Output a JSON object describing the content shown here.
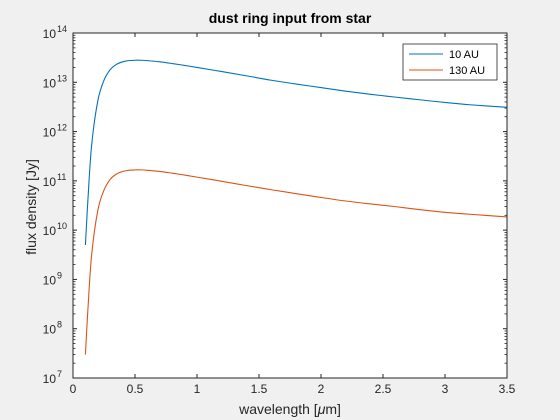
{
  "chart_data": {
    "type": "line",
    "title": "dust ring input from star",
    "xlabel_main": "wavelength [",
    "xlabel_mu": "μ",
    "xlabel_end": "m]",
    "ylabel": "flux density [Jy]",
    "xlim": [
      0,
      3.5
    ],
    "ylim": [
      10000000,
      100000000000000
    ],
    "yscale": "log",
    "grid": false,
    "legend_placement": "top-right",
    "x_ticks": [
      "0",
      "0.5",
      "1",
      "1.5",
      "2",
      "2.5",
      "3",
      "3.5"
    ],
    "y_tick_base": "10",
    "y_tick_exponents": [
      "7",
      "8",
      "9",
      "10",
      "11",
      "12",
      "13",
      "14"
    ],
    "x": [
      0.1,
      0.12,
      0.15,
      0.2,
      0.25,
      0.3,
      0.35,
      0.4,
      0.45,
      0.5,
      0.55,
      0.6,
      0.7,
      0.8,
      0.9,
      1.0,
      1.2,
      1.4,
      1.6,
      1.8,
      2.0,
      2.2,
      2.4,
      2.6,
      2.8,
      3.0,
      3.2,
      3.5
    ],
    "series": [
      {
        "name": "10 AU",
        "color": "#0072bd",
        "values": [
          5000000000.0,
          40000000000.0,
          520000000000.0,
          4200000000000.0,
          11000000000000.0,
          18000000000000.0,
          23000000000000.0,
          26000000000000.0,
          27500000000000.0,
          28000000000000.0,
          28000000000000.0,
          27500000000000.0,
          26000000000000.0,
          24000000000000.0,
          22000000000000.0,
          20000000000000.0,
          16500000000000.0,
          13500000000000.0,
          11000000000000.0,
          9200000000000.0,
          7800000000000.0,
          6600000000000.0,
          5700000000000.0,
          5000000000000.0,
          4400000000000.0,
          3900000000000.0,
          3500000000000.0,
          3100000000000.0
        ]
      },
      {
        "name": "130 AU",
        "color": "#d95319",
        "values": [
          30000000.0,
          240000000.0,
          3100000000.0,
          25000000000.0,
          65000000000.0,
          107000000000.0,
          137000000000.0,
          155000000000.0,
          164000000000.0,
          167000000000.0,
          167000000000.0,
          164000000000.0,
          155000000000.0,
          143000000000.0,
          131000000000.0,
          119000000000.0,
          98000000000.0,
          80000000000.0,
          66000000000.0,
          55000000000.0,
          46000000000.0,
          39000000000.0,
          34000000000.0,
          30000000000.0,
          26000000000.0,
          23000000000.0,
          21000000000.0,
          18500000000.0
        ]
      }
    ]
  }
}
